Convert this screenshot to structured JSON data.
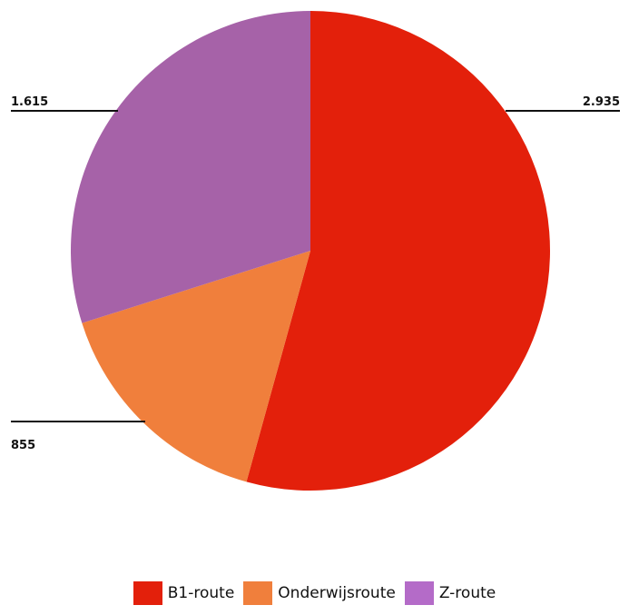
{
  "chart_data": {
    "type": "pie",
    "title": "",
    "categories": [
      "B1-route",
      "Onderwijsroute",
      "Z-route"
    ],
    "values": [
      2935,
      855,
      1615
    ],
    "value_labels": [
      "2.935",
      "855",
      "1.615"
    ],
    "colors": [
      "#e3200b",
      "#f07f3c",
      "#a662a8"
    ],
    "legend_colors": [
      "#e3200b",
      "#f07f3c",
      "#b46bc8"
    ],
    "legend_position": "bottom-center",
    "start_angle_deg": 0,
    "direction": "clockwise"
  }
}
